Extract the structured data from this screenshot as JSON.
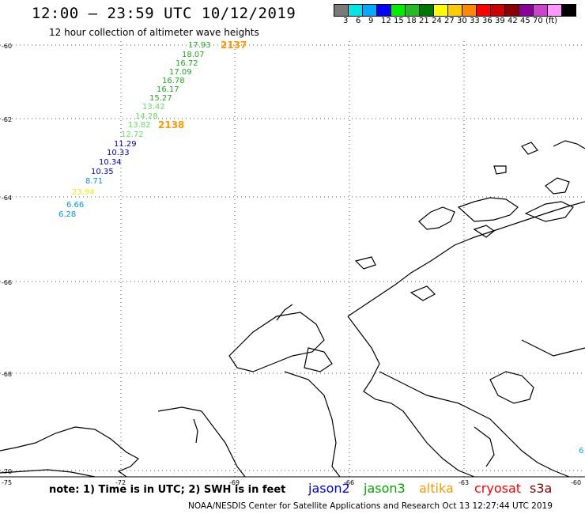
{
  "header": {
    "title": "12:00 – 23:59 UTC 10/12/2019",
    "subtitle": "12 hour collection of altimeter wave heights"
  },
  "legend": {
    "colors": [
      "#7a7a7a",
      "#00e5e5",
      "#00aaff",
      "#0000ff",
      "#00ee00",
      "#22bb22",
      "#007700",
      "#ffff00",
      "#ffcc00",
      "#ff8800",
      "#ff0000",
      "#cc0000",
      "#880000",
      "#8a0099",
      "#cc44cc",
      "#ff99ff",
      "#000000"
    ],
    "labels": [
      "3",
      "6",
      "9",
      "12",
      "15",
      "18",
      "21",
      "24",
      "27",
      "30",
      "33",
      "36",
      "39",
      "42",
      "45",
      "70",
      "(ft)"
    ]
  },
  "map": {
    "lat_labels": [
      "-60",
      "-62",
      "-64",
      "-66",
      "-68",
      "-70"
    ],
    "lon_labels": [
      "-75",
      "-72",
      "-69",
      "-66",
      "-63",
      "-60"
    ],
    "wave_readings": [
      {
        "value": "17.93",
        "color": "#22aa22"
      },
      {
        "value": "18.07",
        "color": "#22aa22"
      },
      {
        "value": "16.72",
        "color": "#22aa22"
      },
      {
        "value": "17.09",
        "color": "#22aa22"
      },
      {
        "value": "16.78",
        "color": "#22aa22"
      },
      {
        "value": "16.17",
        "color": "#22aa22"
      },
      {
        "value": "15.27",
        "color": "#22aa22"
      },
      {
        "value": "13.42",
        "color": "#66dd66"
      },
      {
        "value": "14.28",
        "color": "#66dd66"
      },
      {
        "value": "13.82",
        "color": "#66dd66"
      },
      {
        "value": "12.72",
        "color": "#66dd66"
      },
      {
        "value": "11.29",
        "color": "#0000cc"
      },
      {
        "value": "10.33",
        "color": "#0000cc"
      },
      {
        "value": "10.34",
        "color": "#0000cc"
      },
      {
        "value": "10.35",
        "color": "#0000cc"
      },
      {
        "value": "8.71",
        "color": "#0099dd"
      },
      {
        "value": "23.94",
        "color": "#eeee00"
      },
      {
        "value": "6.66",
        "color": "#0099dd"
      },
      {
        "value": "6.28",
        "color": "#0099dd"
      }
    ],
    "cycle_labels": [
      {
        "value": "2137",
        "color": "#ff9900"
      },
      {
        "value": "2138",
        "color": "#ff9900"
      }
    ],
    "edge_reading": {
      "value": "6",
      "color": "#00aadd"
    }
  },
  "footer": {
    "note": "note: 1) Time is in UTC; 2) SWH is in feet",
    "satellites": [
      {
        "name": "jason2",
        "color": "#0000ff"
      },
      {
        "name": "jason3",
        "color": "#00aa00"
      },
      {
        "name": "altika",
        "color": "#ff9900"
      },
      {
        "name": "cryosat",
        "color": "#ff0000"
      },
      {
        "name": "s3a",
        "color": "#880000"
      }
    ],
    "credit": "NOAA/NESDIS Center for Satellite Applications and Research    Oct 13 12:27:44 UTC 2019"
  }
}
